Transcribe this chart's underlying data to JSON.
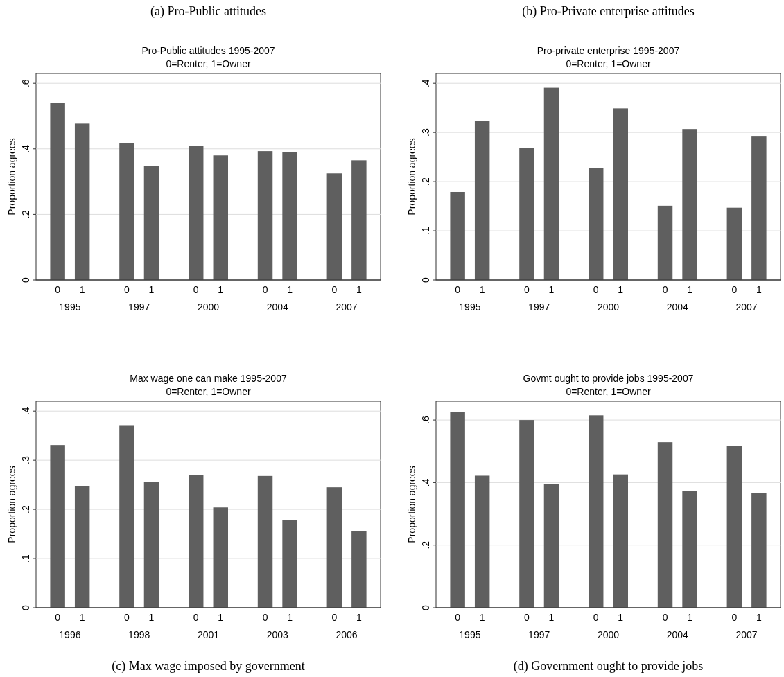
{
  "chart_data": [
    {
      "type": "bar",
      "title": "Pro-Public attitudes 1995-2007",
      "subtitle": "0=Renter, 1=Owner",
      "ylabel": "Proportion agrees",
      "categories": [
        "0",
        "1",
        "0",
        "1",
        "0",
        "1",
        "0",
        "1",
        "0",
        "1"
      ],
      "color": "#5f5f5f",
      "values": [
        0.541,
        0.477,
        0.418,
        0.347,
        0.409,
        0.38,
        0.393,
        0.39,
        0.325,
        0.365
      ],
      "ylim": [
        0,
        0.63
      ],
      "yticks": [
        {
          "value": 0,
          "label": "0"
        },
        {
          "value": 0.2,
          "label": ".2"
        },
        {
          "value": 0.4,
          "label": ".4"
        },
        {
          "value": 0.6,
          "label": ".6"
        }
      ],
      "grid": "y",
      "annotations": [
        "(a) Pro-Public attitudes",
        "1995",
        "1997",
        "2000",
        "2004",
        "2007"
      ]
    },
    {
      "type": "bar",
      "title": "Pro-private enterprise 1995-2007",
      "subtitle": "0=Renter, 1=Owner",
      "ylabel": "Proportion agrees",
      "categories": [
        "0",
        "1",
        "0",
        "1",
        "0",
        "1",
        "0",
        "1",
        "0",
        "1"
      ],
      "color": "#5f5f5f",
      "values": [
        0.179,
        0.323,
        0.269,
        0.391,
        0.228,
        0.349,
        0.151,
        0.307,
        0.147,
        0.293
      ],
      "ylim": [
        0,
        0.42
      ],
      "yticks": [
        {
          "value": 0,
          "label": "0"
        },
        {
          "value": 0.1,
          "label": ".1"
        },
        {
          "value": 0.2,
          "label": ".2"
        },
        {
          "value": 0.3,
          "label": ".3"
        },
        {
          "value": 0.4,
          "label": ".4"
        }
      ],
      "grid": "y",
      "annotations": [
        "(b) Pro-Private enterprise attitudes",
        "1995",
        "1997",
        "2000",
        "2004",
        "2007"
      ]
    },
    {
      "type": "bar",
      "title": "Max wage one can make 1995-2007",
      "subtitle": "0=Renter, 1=Owner",
      "ylabel": "Proportion agrees",
      "categories": [
        "0",
        "1",
        "0",
        "1",
        "0",
        "1",
        "0",
        "1",
        "0",
        "1"
      ],
      "color": "#5f5f5f",
      "values": [
        0.331,
        0.247,
        0.37,
        0.256,
        0.27,
        0.204,
        0.268,
        0.178,
        0.245,
        0.156
      ],
      "ylim": [
        0,
        0.42
      ],
      "yticks": [
        {
          "value": 0,
          "label": "0"
        },
        {
          "value": 0.1,
          "label": ".1"
        },
        {
          "value": 0.2,
          "label": ".2"
        },
        {
          "value": 0.3,
          "label": ".3"
        },
        {
          "value": 0.4,
          "label": ".4"
        }
      ],
      "grid": "y",
      "annotations": [
        "(c) Max wage imposed by government",
        "1996",
        "1998",
        "2001",
        "2003",
        "2006"
      ]
    },
    {
      "type": "bar",
      "title": "Govmt ought to provide jobs 1995-2007",
      "subtitle": "0=Renter, 1=Owner",
      "ylabel": "Proportion agrees",
      "categories": [
        "0",
        "1",
        "0",
        "1",
        "0",
        "1",
        "0",
        "1",
        "0",
        "1"
      ],
      "color": "#5f5f5f",
      "values": [
        0.625,
        0.422,
        0.6,
        0.396,
        0.615,
        0.426,
        0.529,
        0.373,
        0.518,
        0.366
      ],
      "ylim": [
        0,
        0.66
      ],
      "yticks": [
        {
          "value": 0,
          "label": "0"
        },
        {
          "value": 0.2,
          "label": ".2"
        },
        {
          "value": 0.4,
          "label": ".4"
        },
        {
          "value": 0.6,
          "label": ".6"
        }
      ],
      "grid": "y",
      "annotations": [
        "(d) Government ought to provide jobs",
        "1995",
        "1997",
        "2000",
        "2004",
        "2007"
      ]
    }
  ]
}
